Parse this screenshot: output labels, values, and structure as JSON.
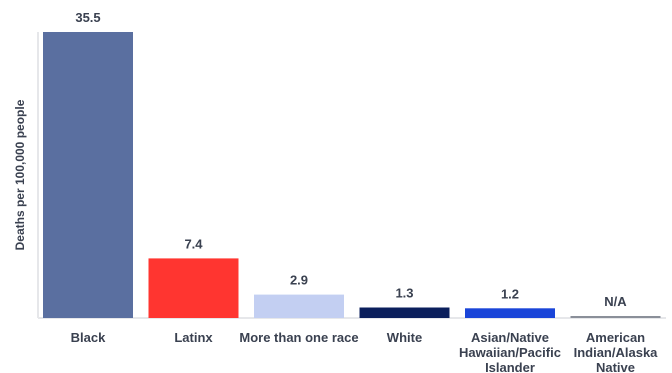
{
  "chart_data": {
    "type": "bar",
    "title": "",
    "xlabel": "",
    "ylabel": "Deaths per 100,000 people",
    "ylim": [
      0,
      35.5
    ],
    "grid": false,
    "categories": [
      "Black",
      "Latinx",
      "More than one race",
      "White",
      "Asian/Native Hawaiian/Pacific Islander",
      "American Indian/Alaska Native"
    ],
    "values": [
      35.5,
      7.4,
      2.9,
      1.3,
      1.2,
      null
    ],
    "value_labels": [
      "35.5",
      "7.4",
      "2.9",
      "1.3",
      "1.2",
      "N/A"
    ],
    "colors": [
      "#5a6fa0",
      "#ff3530",
      "#c3cff2",
      "#0b1f5c",
      "#1a45d8",
      "#8a8f99"
    ]
  }
}
